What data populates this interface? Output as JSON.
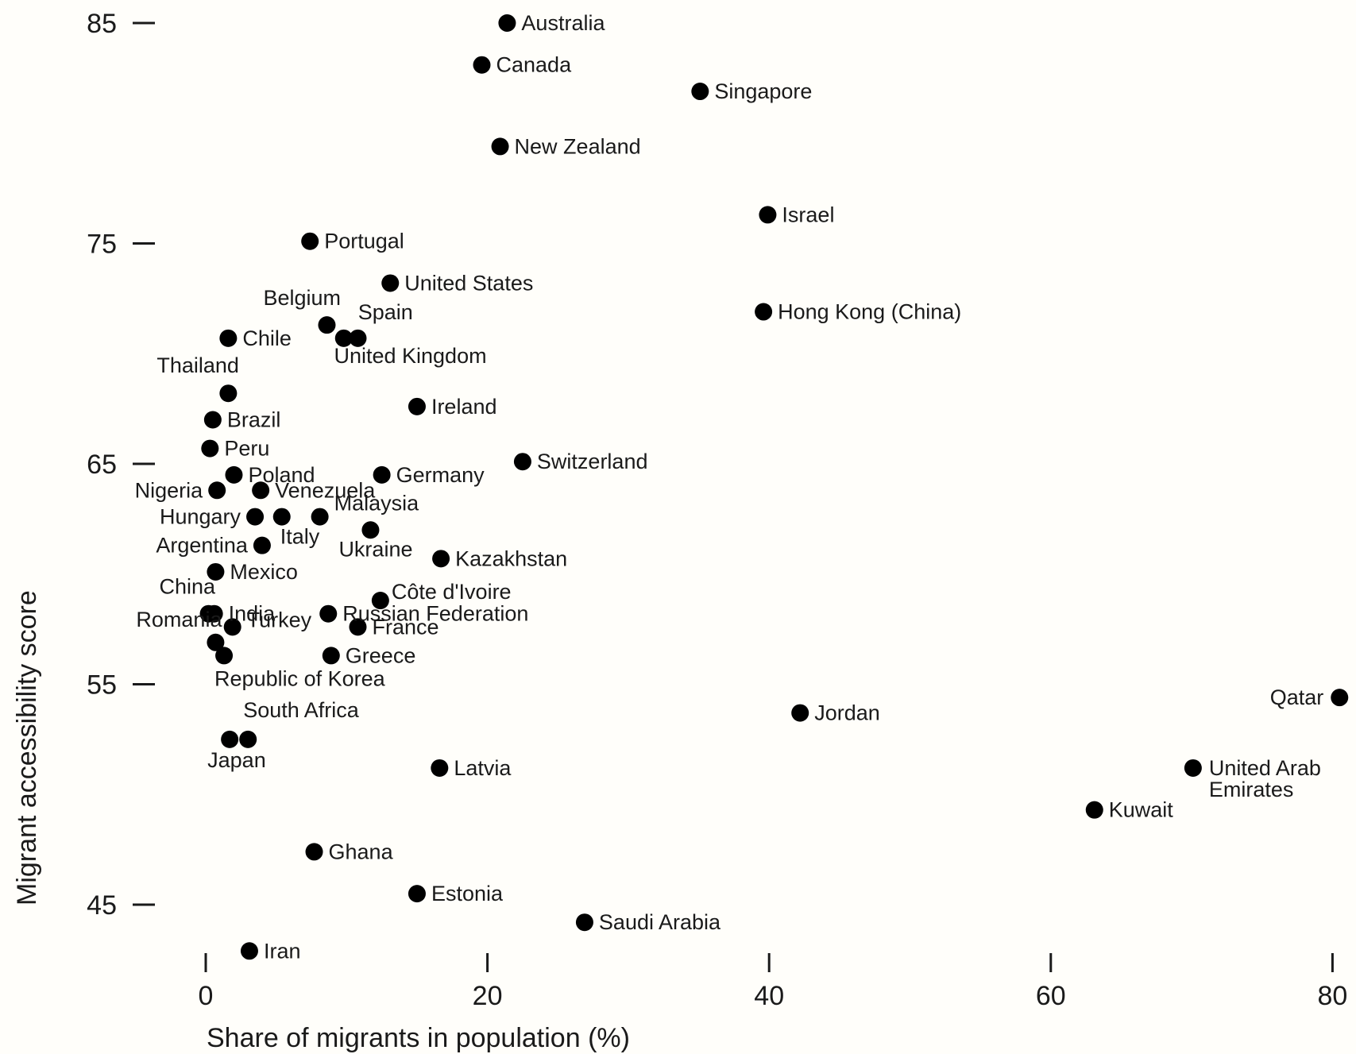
{
  "chart_data": {
    "type": "scatter",
    "xlabel": "Share of migrants in population (%)",
    "ylabel": "Migrant accessibility score",
    "xlim": [
      0,
      80
    ],
    "ylim": [
      45,
      85
    ],
    "x_ticks": [
      0,
      20,
      40,
      60,
      80
    ],
    "y_ticks": [
      45,
      55,
      65,
      75,
      85
    ],
    "grid": false,
    "marker_color": "#000000",
    "points": [
      {
        "label": "Australia",
        "x": 21.4,
        "y": 85.0
      },
      {
        "label": "Canada",
        "x": 19.6,
        "y": 83.1
      },
      {
        "label": "Singapore",
        "x": 35.1,
        "y": 81.9
      },
      {
        "label": "New Zealand",
        "x": 20.9,
        "y": 79.4
      },
      {
        "label": "Israel",
        "x": 39.9,
        "y": 76.3
      },
      {
        "label": "Portugal",
        "x": 7.4,
        "y": 75.1
      },
      {
        "label": "United States",
        "x": 13.1,
        "y": 73.2
      },
      {
        "label": "Hong Kong (China)",
        "x": 39.6,
        "y": 71.9
      },
      {
        "label": "Belgium",
        "x": 8.6,
        "y": 71.3
      },
      {
        "label": "Spain",
        "x": 9.8,
        "y": 70.7
      },
      {
        "label": "United Kingdom",
        "x": 10.8,
        "y": 70.7
      },
      {
        "label": "Chile",
        "x": 1.6,
        "y": 70.7
      },
      {
        "label": "Thailand",
        "x": 1.6,
        "y": 68.2
      },
      {
        "label": "Ireland",
        "x": 15.0,
        "y": 67.6
      },
      {
        "label": "Brazil",
        "x": 0.5,
        "y": 67.0
      },
      {
        "label": "Peru",
        "x": 0.3,
        "y": 65.7
      },
      {
        "label": "Switzerland",
        "x": 22.5,
        "y": 65.1
      },
      {
        "label": "Poland",
        "x": 2.0,
        "y": 64.5
      },
      {
        "label": "Germany",
        "x": 12.5,
        "y": 64.5
      },
      {
        "label": "Nigeria",
        "x": 0.8,
        "y": 63.8
      },
      {
        "label": "Venezuela",
        "x": 3.9,
        "y": 63.8
      },
      {
        "label": "Hungary",
        "x": 3.5,
        "y": 62.6
      },
      {
        "label": "Italy",
        "x": 5.4,
        "y": 62.6
      },
      {
        "label": "Malaysia",
        "x": 8.1,
        "y": 62.6
      },
      {
        "label": "Ukraine",
        "x": 11.7,
        "y": 62.0
      },
      {
        "label": "Argentina",
        "x": 4.0,
        "y": 61.3
      },
      {
        "label": "Kazakhstan",
        "x": 16.7,
        "y": 60.7
      },
      {
        "label": "Mexico",
        "x": 0.7,
        "y": 60.1
      },
      {
        "label": "Côte d'Ivoire",
        "x": 12.4,
        "y": 58.8
      },
      {
        "label": "China",
        "x": 0.2,
        "y": 58.2
      },
      {
        "label": "India",
        "x": 0.6,
        "y": 58.2
      },
      {
        "label": "Russian Federation",
        "x": 8.7,
        "y": 58.2
      },
      {
        "label": "Romania",
        "x": 0.7,
        "y": 56.9
      },
      {
        "label": "Turkey",
        "x": 1.9,
        "y": 57.6
      },
      {
        "label": "France",
        "x": 10.8,
        "y": 57.6
      },
      {
        "label": "Greece",
        "x": 8.9,
        "y": 56.3
      },
      {
        "label": "Republic of Korea",
        "x": 1.3,
        "y": 56.3
      },
      {
        "label": "Qatar",
        "x": 80.5,
        "y": 54.4
      },
      {
        "label": "Jordan",
        "x": 42.2,
        "y": 53.7
      },
      {
        "label": "South Africa",
        "x": 3.0,
        "y": 52.5
      },
      {
        "label": "Japan",
        "x": 1.7,
        "y": 52.5
      },
      {
        "label": "Latvia",
        "x": 16.6,
        "y": 51.2
      },
      {
        "label": "United Arab Emirates",
        "x": 70.1,
        "y": 51.2
      },
      {
        "label": "Kuwait",
        "x": 63.1,
        "y": 49.3
      },
      {
        "label": "Ghana",
        "x": 7.7,
        "y": 47.4
      },
      {
        "label": "Estonia",
        "x": 15.0,
        "y": 45.5
      },
      {
        "label": "Saudi Arabia",
        "x": 26.9,
        "y": 44.2
      },
      {
        "label": "Iran",
        "x": 3.1,
        "y": 42.9
      }
    ]
  }
}
